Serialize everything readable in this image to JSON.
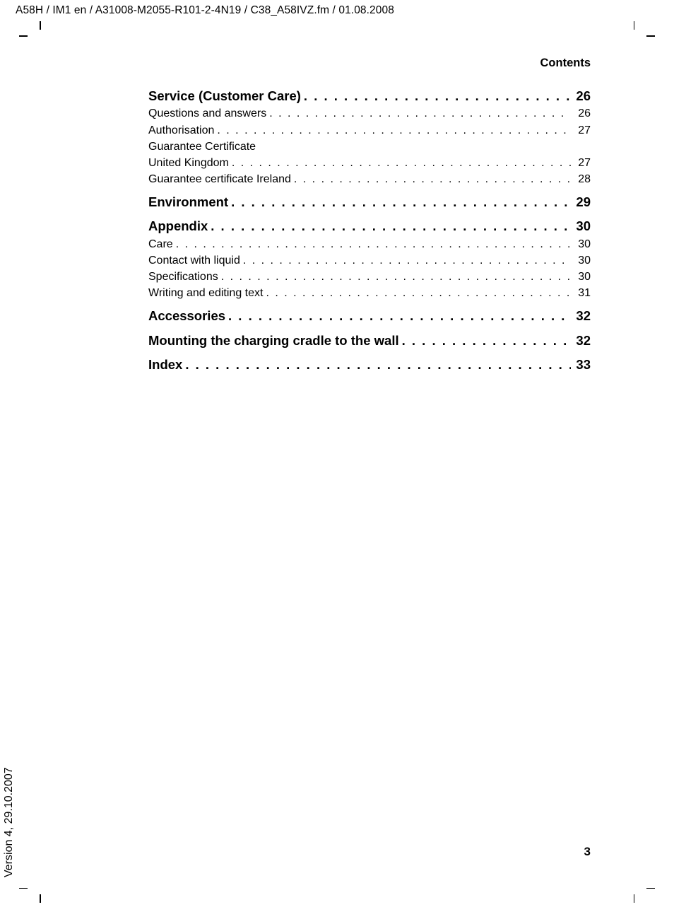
{
  "header": {
    "text": "A58H / IM1 en / A31008-M2055-R101-2-4N19 / C38_A58IVZ.fm / 01.08.2008"
  },
  "section_title": "Contents",
  "toc": [
    {
      "type": "major",
      "label": "Service (Customer Care)",
      "page": "26"
    },
    {
      "type": "minor",
      "label": "Questions and answers",
      "page": "26"
    },
    {
      "type": "minor",
      "label": "Authorisation",
      "page": "27"
    },
    {
      "type": "noleader",
      "label": "Guarantee Certificate"
    },
    {
      "type": "minor",
      "label": "United Kingdom",
      "page": "27"
    },
    {
      "type": "minor",
      "label": "Guarantee certificate Ireland",
      "page": "28"
    },
    {
      "type": "gap"
    },
    {
      "type": "major",
      "label": "Environment",
      "page": "29"
    },
    {
      "type": "gap"
    },
    {
      "type": "major",
      "label": "Appendix",
      "page": "30"
    },
    {
      "type": "minor",
      "label": "Care",
      "page": "30"
    },
    {
      "type": "minor",
      "label": "Contact with liquid",
      "page": "30"
    },
    {
      "type": "minor",
      "label": "Specifications",
      "page": "30"
    },
    {
      "type": "minor",
      "label": "Writing and editing text",
      "page": "31"
    },
    {
      "type": "gap"
    },
    {
      "type": "major",
      "label": "Accessories",
      "page": "32"
    },
    {
      "type": "gap"
    },
    {
      "type": "major",
      "label": "Mounting the charging cradle to the wall",
      "page": "32"
    },
    {
      "type": "gap"
    },
    {
      "type": "major",
      "label": "Index",
      "page": "33"
    }
  ],
  "page_number": "3",
  "side_text": "Version 4, 29.10.2007"
}
